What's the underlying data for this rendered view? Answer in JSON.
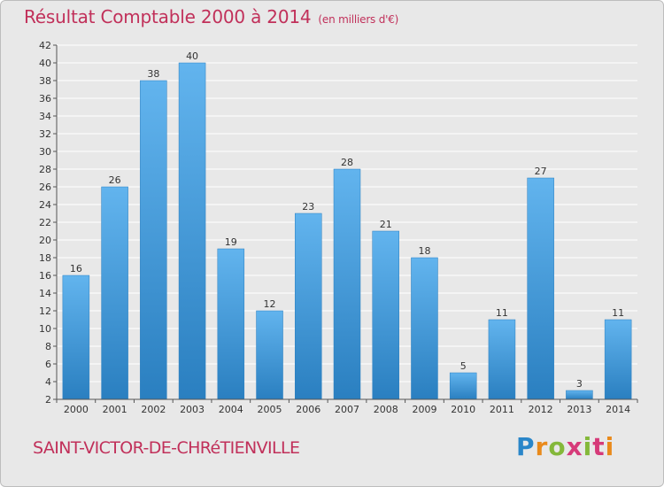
{
  "title": "Résultat Comptable 2000 à 2014",
  "subtitle": "(en milliers d'€)",
  "place": "SAINT-VICTOR-DE-CHRéTIENVILLE",
  "logo": {
    "text": "Proxiti",
    "colors": [
      "#2a86c9",
      "#e98a1b",
      "#84b83a",
      "#d63a79"
    ]
  },
  "colors": {
    "bar_light": "#62b4ee",
    "bar_dark": "#2a7fc0",
    "title": "#c1305a"
  },
  "chart_data": {
    "type": "bar",
    "title": "Résultat Comptable 2000 à 2014",
    "ylabel": "en milliers d'€",
    "categories": [
      "2000",
      "2001",
      "2002",
      "2003",
      "2004",
      "2005",
      "2006",
      "2007",
      "2008",
      "2009",
      "2010",
      "2011",
      "2012",
      "2013",
      "2014"
    ],
    "values": [
      16,
      26,
      38,
      40,
      19,
      12,
      23,
      28,
      21,
      18,
      5,
      11,
      27,
      3,
      11
    ],
    "ylim": [
      2,
      42
    ],
    "yticks": [
      2,
      4,
      6,
      8,
      10,
      12,
      14,
      16,
      18,
      20,
      22,
      24,
      26,
      28,
      30,
      32,
      34,
      36,
      38,
      40,
      42
    ],
    "grid": true
  }
}
